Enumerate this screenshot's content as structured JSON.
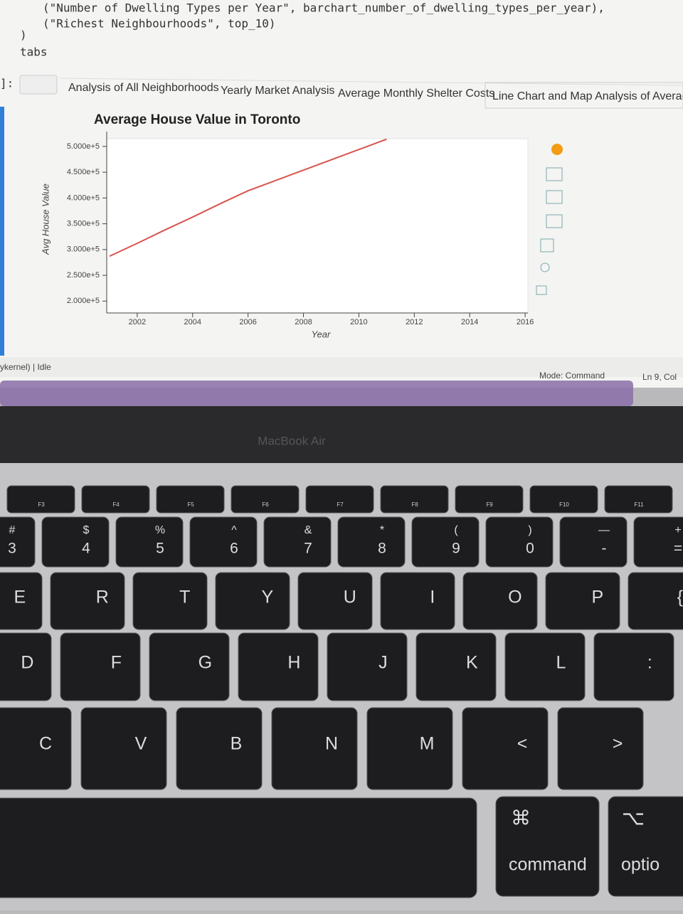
{
  "code": {
    "lines": [
      "(\"Number of Dwelling Types per Year\", barchart_number_of_dwelling_types_per_year),",
      "(\"Richest Neighbourhoods\", top_10)",
      ")",
      "tabs"
    ],
    "prompt": "]:"
  },
  "tabs": [
    "Analysis of All Neighborhoods",
    "Yearly Market Analysis",
    "Average Monthly Shelter Costs",
    "Line Chart and Map Analysis of Average Ho"
  ],
  "chart_data": {
    "type": "line",
    "title": "Average House Value in Toronto",
    "x_label": "Year",
    "y_label": "Avg House Value",
    "x": [
      2001,
      2002,
      2003,
      2004,
      2005,
      2006,
      2007,
      2008,
      2009,
      2010,
      2011
    ],
    "series": [
      {
        "color": "#d9534f",
        "values": [
          287000,
          312000,
          338000,
          363000,
          389000,
          414000,
          434000,
          454000,
          474000,
          494000,
          514000
        ]
      }
    ],
    "xlim": [
      2000.9,
      2016.1
    ],
    "ylim": [
      177000,
      515000
    ],
    "xticks": [
      2002,
      2004,
      2006,
      2008,
      2010,
      2012,
      2014,
      2016
    ],
    "yticks": [
      {
        "value": 200000,
        "label": "2.000e+5"
      },
      {
        "value": 250000,
        "label": "2.500e+5"
      },
      {
        "value": 300000,
        "label": "3.000e+5"
      },
      {
        "value": 350000,
        "label": "3.500e+5"
      },
      {
        "value": 400000,
        "label": "4.000e+5"
      },
      {
        "value": 450000,
        "label": "4.500e+5"
      },
      {
        "value": 500000,
        "label": "5.000e+5"
      }
    ]
  },
  "status_bar": {
    "kernel": "ykernel) | Idle",
    "mode": "Mode: Command",
    "position": "Ln 9, Col"
  },
  "bezel_label": "MacBook Air",
  "keyboard": {
    "function_row": [
      "F3",
      "F4",
      "F5",
      "F6",
      "F7",
      "F8",
      "F9",
      "F10",
      "F11"
    ],
    "number_row": [
      {
        "top": "#",
        "bottom": "3"
      },
      {
        "top": "$",
        "bottom": "4"
      },
      {
        "top": "%",
        "bottom": "5"
      },
      {
        "top": "^",
        "bottom": "6"
      },
      {
        "top": "&",
        "bottom": "7"
      },
      {
        "top": "*",
        "bottom": "8"
      },
      {
        "top": "(",
        "bottom": "9"
      },
      {
        "top": ")",
        "bottom": "0"
      },
      {
        "top": "—",
        "bottom": "-"
      },
      {
        "top": "+",
        "bottom": "="
      }
    ],
    "letter_rows": [
      [
        "E",
        "R",
        "T",
        "Y",
        "U",
        "I",
        "O",
        "P",
        "{"
      ],
      [
        "D",
        "F",
        "G",
        "H",
        "J",
        "K",
        "L",
        ":"
      ],
      [
        "C",
        "V",
        "B",
        "N",
        "M",
        "<",
        ">"
      ]
    ],
    "modifiers": [
      {
        "symbol": "⌘",
        "label": "command"
      },
      {
        "symbol": "⌥",
        "label": "optio"
      }
    ]
  }
}
